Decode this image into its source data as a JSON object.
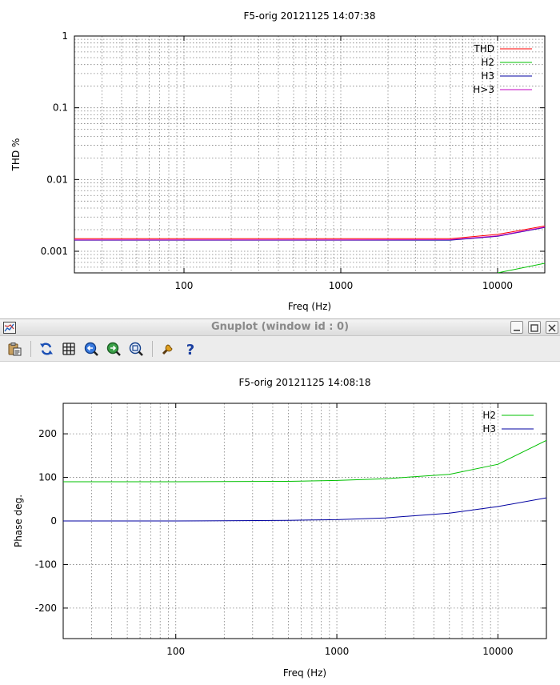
{
  "window": {
    "title": "Gnuplot (window id : 0)",
    "toolbar": [
      {
        "name": "copy-to-clipboard-icon"
      },
      {
        "name": "replot-icon"
      },
      {
        "name": "grid-icon"
      },
      {
        "name": "zoom-previous-icon"
      },
      {
        "name": "zoom-next-icon"
      },
      {
        "name": "autoscale-icon"
      },
      {
        "name": "options-icon"
      },
      {
        "name": "help-icon"
      }
    ]
  },
  "chart_data": [
    {
      "type": "line",
      "title": "F5-orig 20121125 14:07:38",
      "xlabel": "Freq (Hz)",
      "ylabel": "THD %",
      "xscale": "log",
      "yscale": "log",
      "xlim": [
        20,
        20000
      ],
      "ylim": [
        0.0005,
        1
      ],
      "x_ticks": [
        "100",
        "1000",
        "10000"
      ],
      "y_ticks": [
        "0.001",
        "0.01",
        "0.1",
        "1"
      ],
      "grid": true,
      "legend_position": "top-right",
      "series": [
        {
          "name": "THD",
          "color": "#ff0000",
          "x": [
            20,
            100,
            1000,
            5000,
            10000,
            20000
          ],
          "y": [
            0.0015,
            0.0015,
            0.0015,
            0.0015,
            0.00172,
            0.00225
          ]
        },
        {
          "name": "H2",
          "color": "#00c000",
          "x": [
            10000,
            20000
          ],
          "y": [
            0.0005,
            0.00068
          ]
        },
        {
          "name": "H3",
          "color": "#0000a0",
          "x": [
            20,
            100,
            1000,
            5000,
            10000,
            20000
          ],
          "y": [
            0.00143,
            0.00143,
            0.00143,
            0.00143,
            0.00162,
            0.00215
          ]
        },
        {
          "name": "H>3",
          "color": "#c000c0",
          "x": [
            20,
            100,
            1000,
            5000,
            10000,
            20000
          ],
          "y": [
            0.00144,
            0.00144,
            0.00144,
            0.00145,
            0.00164,
            0.00218
          ]
        }
      ]
    },
    {
      "type": "line",
      "title": "F5-orig 20121125 14:08:18",
      "xlabel": "Freq (Hz)",
      "ylabel": "Phase deg.",
      "xscale": "log",
      "xlim": [
        20,
        20000
      ],
      "ylim": [
        -270,
        270
      ],
      "x_ticks": [
        "100",
        "1000",
        "10000"
      ],
      "y_ticks": [
        "-200",
        "-100",
        "0",
        "100",
        "200"
      ],
      "grid": true,
      "legend_position": "top-right",
      "series": [
        {
          "name": "H2",
          "color": "#00c000",
          "x": [
            20,
            100,
            200,
            500,
            1000,
            2000,
            5000,
            10000,
            20000
          ],
          "y": [
            90,
            90,
            90.5,
            91,
            93,
            97,
            107,
            130,
            185
          ]
        },
        {
          "name": "H3",
          "color": "#0000a0",
          "x": [
            20,
            100,
            200,
            500,
            1000,
            2000,
            5000,
            10000,
            20000
          ],
          "y": [
            0,
            0,
            0.5,
            1.5,
            3,
            7,
            18,
            33,
            53
          ]
        }
      ]
    }
  ]
}
